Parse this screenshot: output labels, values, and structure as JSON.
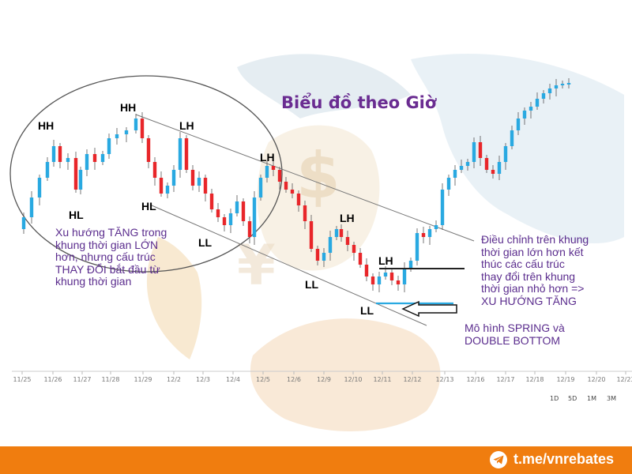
{
  "chart_data": {
    "type": "candlestick",
    "title": "Biểu đồ theo Giờ",
    "x_ticks": [
      "11/25",
      "11/26",
      "11/27",
      "11/28",
      "11/29",
      "12/2",
      "12/3",
      "12/4",
      "12/5",
      "12/6",
      "12/9",
      "12/10",
      "12/11",
      "12/12",
      "12/13",
      "12/16",
      "12/17",
      "12/18",
      "12/19",
      "12/20",
      "12/23"
    ],
    "periods": [
      "1D",
      "5D",
      "1M",
      "3M"
    ],
    "structure_labels": [
      "HH",
      "HL",
      "HH",
      "HL",
      "LH",
      "LL",
      "LH",
      "LL",
      "LH",
      "LH",
      "LL"
    ],
    "annotations": {
      "left_note": [
        "Xu hướng TĂNG trong",
        "khung thời gian LỚN",
        "hơn, nhưng cấu trúc",
        "THAY ĐỔI bắt đầu từ",
        "khung thời gian"
      ],
      "right_note": [
        "Điều chỉnh trên khung",
        "thời gian lớn hơn kết",
        "thúc các cấu trúc",
        "thay đổi trên khung",
        "thời gian nhỏ hơn =>",
        "XU HƯỚNG TĂNG"
      ],
      "pattern_note": [
        "Mô hình SPRING và",
        "DOUBLE BOTTOM"
      ]
    },
    "grid": false,
    "legend": "none"
  },
  "footer": {
    "handle": "t.me/vnrebates",
    "icon": "telegram-icon"
  },
  "colors": {
    "up": "#29a9e1",
    "down": "#e8262a",
    "accent": "#6a2c91",
    "footer": "#f07d0f"
  }
}
